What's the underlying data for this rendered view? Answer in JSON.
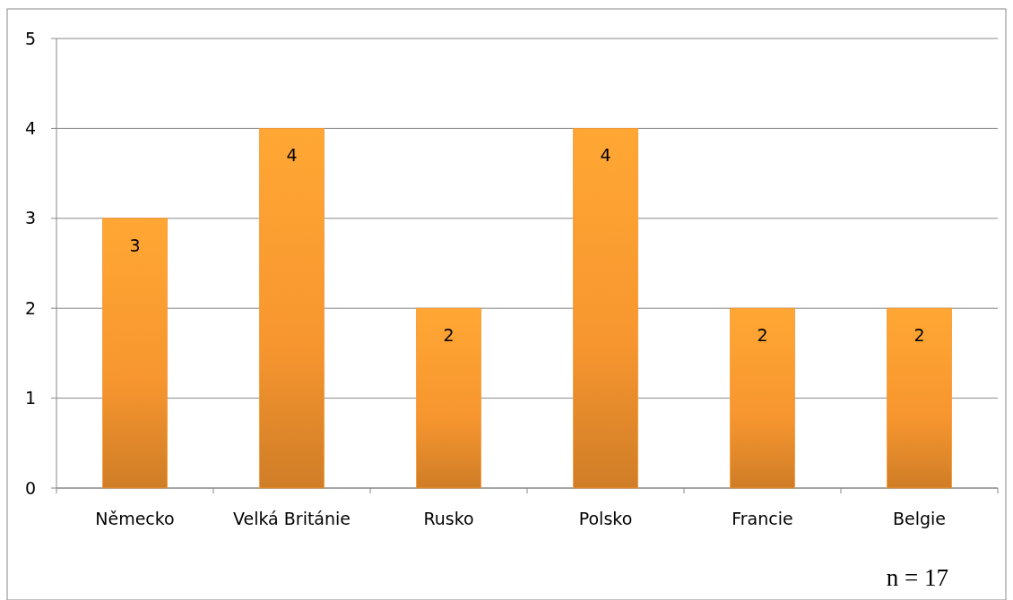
{
  "chart_data": {
    "type": "bar",
    "categories": [
      "Německo",
      "Velká Británie",
      "Rusko",
      "Polsko",
      "Francie",
      "Belgie"
    ],
    "values": [
      3,
      4,
      2,
      4,
      2,
      2
    ],
    "color": "#f7962f",
    "ylim": [
      0,
      5
    ],
    "yticks": [
      0,
      1,
      2,
      3,
      4,
      5
    ],
    "grid": "y",
    "data_labels": true,
    "annotations": [
      "n = 17"
    ]
  }
}
